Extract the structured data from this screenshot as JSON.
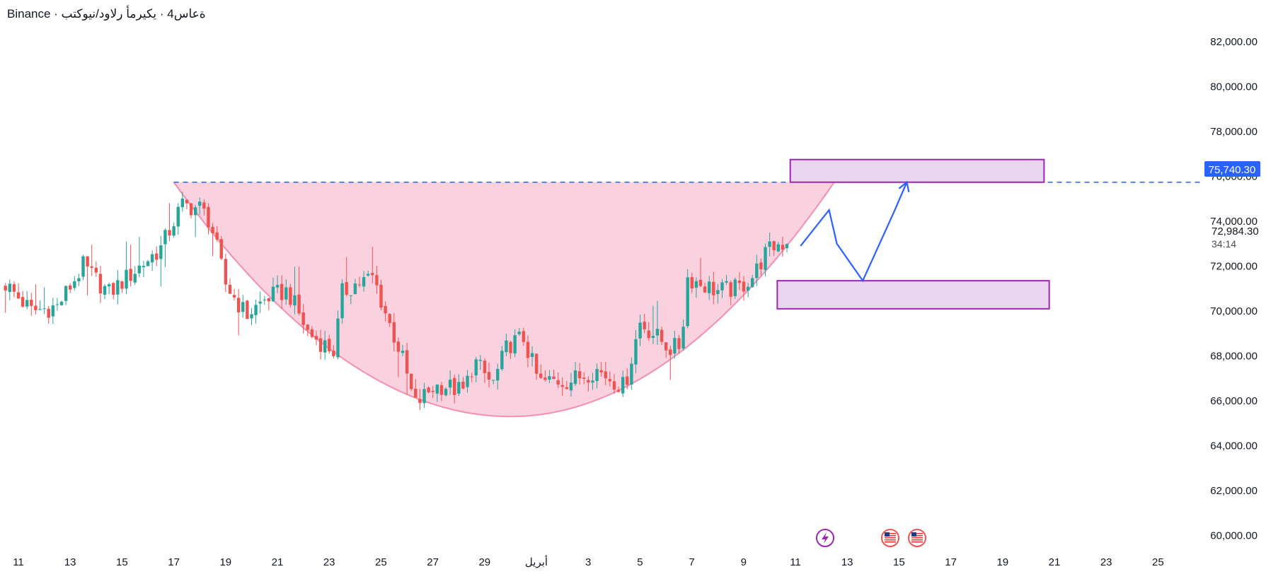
{
  "header": {
    "title": "Binance · ةعاس4 · يكيرمأ رلاود/نيوكتب"
  },
  "price_labels": {
    "target": "75,740.30",
    "current": "72,984.30",
    "countdown": "34:14"
  },
  "colors": {
    "up": "#26a69a",
    "down": "#ef5350",
    "cup_fill": "#f8c9d9",
    "cup_stroke": "#f48fb1",
    "zone_fill": "#ead5f0",
    "zone_stroke": "#9c27b0",
    "projection": "#2962ff",
    "target_badge": "#2962ff"
  },
  "event_icons": [
    "lightning-icon",
    "us-flag-icon",
    "us-flag-icon"
  ],
  "chart_data": {
    "type": "candlestick",
    "title": "",
    "xlabel": "",
    "ylabel": "",
    "ylim": [
      59000,
      83500
    ],
    "yticks": [
      "60,000.00",
      "62,000.00",
      "64,000.00",
      "66,000.00",
      "68,000.00",
      "70,000.00",
      "72,000.00",
      "74,000.00",
      "76,000.00",
      "78,000.00",
      "80,000.00",
      "82,000.00"
    ],
    "ytick_values": [
      60000,
      62000,
      64000,
      66000,
      68000,
      70000,
      72000,
      74000,
      76000,
      78000,
      80000,
      82000
    ],
    "xticks": [
      "11",
      "13",
      "15",
      "17",
      "19",
      "21",
      "23",
      "25",
      "27",
      "29",
      "أبريل",
      "3",
      "5",
      "7",
      "9",
      "11",
      "13",
      "15",
      "17",
      "19",
      "21",
      "23",
      "25"
    ],
    "xtick_days": [
      0,
      2,
      4,
      6,
      8,
      10,
      12,
      14,
      16,
      18,
      20,
      22,
      24,
      26,
      28,
      30,
      32,
      34,
      36,
      38,
      40,
      42,
      44
    ],
    "grid": false,
    "candle_interval_days": 0.1667,
    "price_path_days": [
      -0.5,
      0.5,
      1.5,
      2.5,
      3.5,
      4.5,
      5.5,
      6.3,
      7.0,
      7.4,
      8.0,
      8.8,
      9.6,
      10.4,
      11.2,
      12.2,
      12.5,
      13.0,
      13.7,
      14.3,
      14.8,
      15.3,
      16.0,
      16.4,
      17.2,
      17.6,
      18.3,
      18.9,
      19.5,
      20.1,
      20.7,
      21.3,
      22.3,
      23.4,
      24.0,
      25.2,
      25.6,
      25.8,
      26.4,
      27.0,
      27.8,
      28.4,
      28.8,
      29.3,
      29.7
    ],
    "price_path_values": [
      71200,
      70000,
      70200,
      72000,
      70800,
      71800,
      72800,
      74700,
      74600,
      74000,
      71200,
      69800,
      70600,
      70900,
      69000,
      68200,
      70800,
      71200,
      71500,
      69500,
      68000,
      65800,
      66600,
      66700,
      66400,
      67800,
      66700,
      68500,
      68800,
      66800,
      66900,
      66900,
      67400,
      66600,
      69500,
      68300,
      68500,
      71500,
      71200,
      70900,
      71000,
      71600,
      72500,
      73000,
      72984
    ],
    "cup_pattern": {
      "start_day": 6.0,
      "end_day": 31.5,
      "bottom_day": 19.0,
      "top_price": 75740,
      "bottom_price": 65300
    },
    "resistance_line": {
      "price": 75740,
      "label": "75,740.30",
      "start_day": 6.0
    },
    "zones": [
      {
        "name": "target-zone",
        "day_start": 29.8,
        "day_end": 39.6,
        "price_low": 75740,
        "price_high": 76750
      },
      {
        "name": "support-zone",
        "day_start": 29.3,
        "day_end": 39.8,
        "price_low": 70100,
        "price_high": 71350
      }
    ],
    "projection_path": {
      "days": [
        30.2,
        31.3,
        31.6,
        32.6,
        33.8,
        34.3
      ],
      "values": [
        72900,
        74500,
        73000,
        71350,
        74400,
        75740
      ]
    }
  }
}
